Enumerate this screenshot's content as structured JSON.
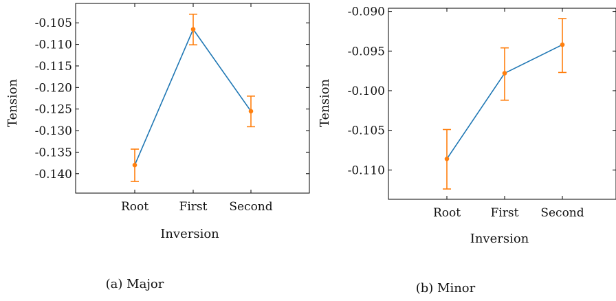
{
  "chart_data": [
    {
      "type": "line",
      "caption": "(a) Major",
      "xlabel": "Inversion",
      "ylabel": "Tension",
      "categories": [
        "Root",
        "First",
        "Second"
      ],
      "ylim": [
        -0.1445,
        -0.1005
      ],
      "yticks": [
        -0.105,
        -0.11,
        -0.115,
        -0.12,
        -0.125,
        -0.13,
        -0.135,
        -0.14
      ],
      "ytick_labels": [
        "-0.105",
        "-0.110",
        "-0.115",
        "-0.120",
        "-0.125",
        "-0.130",
        "-0.135",
        "-0.140"
      ],
      "series": [
        {
          "values": [
            -0.138,
            -0.1065,
            -0.1255
          ],
          "err_low": [
            -0.1418,
            -0.1101,
            -0.1291
          ],
          "err_high": [
            -0.1343,
            -0.103,
            -0.122
          ],
          "line_color": "#1f77b4",
          "marker_color": "#ff7f0e"
        }
      ],
      "grid": false,
      "legend": "none"
    },
    {
      "type": "line",
      "caption": "(b) Minor",
      "xlabel": "Inversion",
      "ylabel": "Tension",
      "categories": [
        "Root",
        "First",
        "Second"
      ],
      "ylim": [
        -0.1137,
        -0.0896
      ],
      "yticks": [
        -0.09,
        -0.095,
        -0.1,
        -0.105,
        -0.11
      ],
      "ytick_labels": [
        "-0.090",
        "-0.095",
        "-0.100",
        "-0.105",
        "-0.110"
      ],
      "series": [
        {
          "values": [
            -0.1086,
            -0.0978,
            -0.0942
          ],
          "err_low": [
            -0.1124,
            -0.1012,
            -0.0977
          ],
          "err_high": [
            -0.1049,
            -0.0946,
            -0.0909
          ],
          "line_color": "#1f77b4",
          "marker_color": "#ff7f0e"
        }
      ],
      "grid": false,
      "legend": "none"
    }
  ]
}
